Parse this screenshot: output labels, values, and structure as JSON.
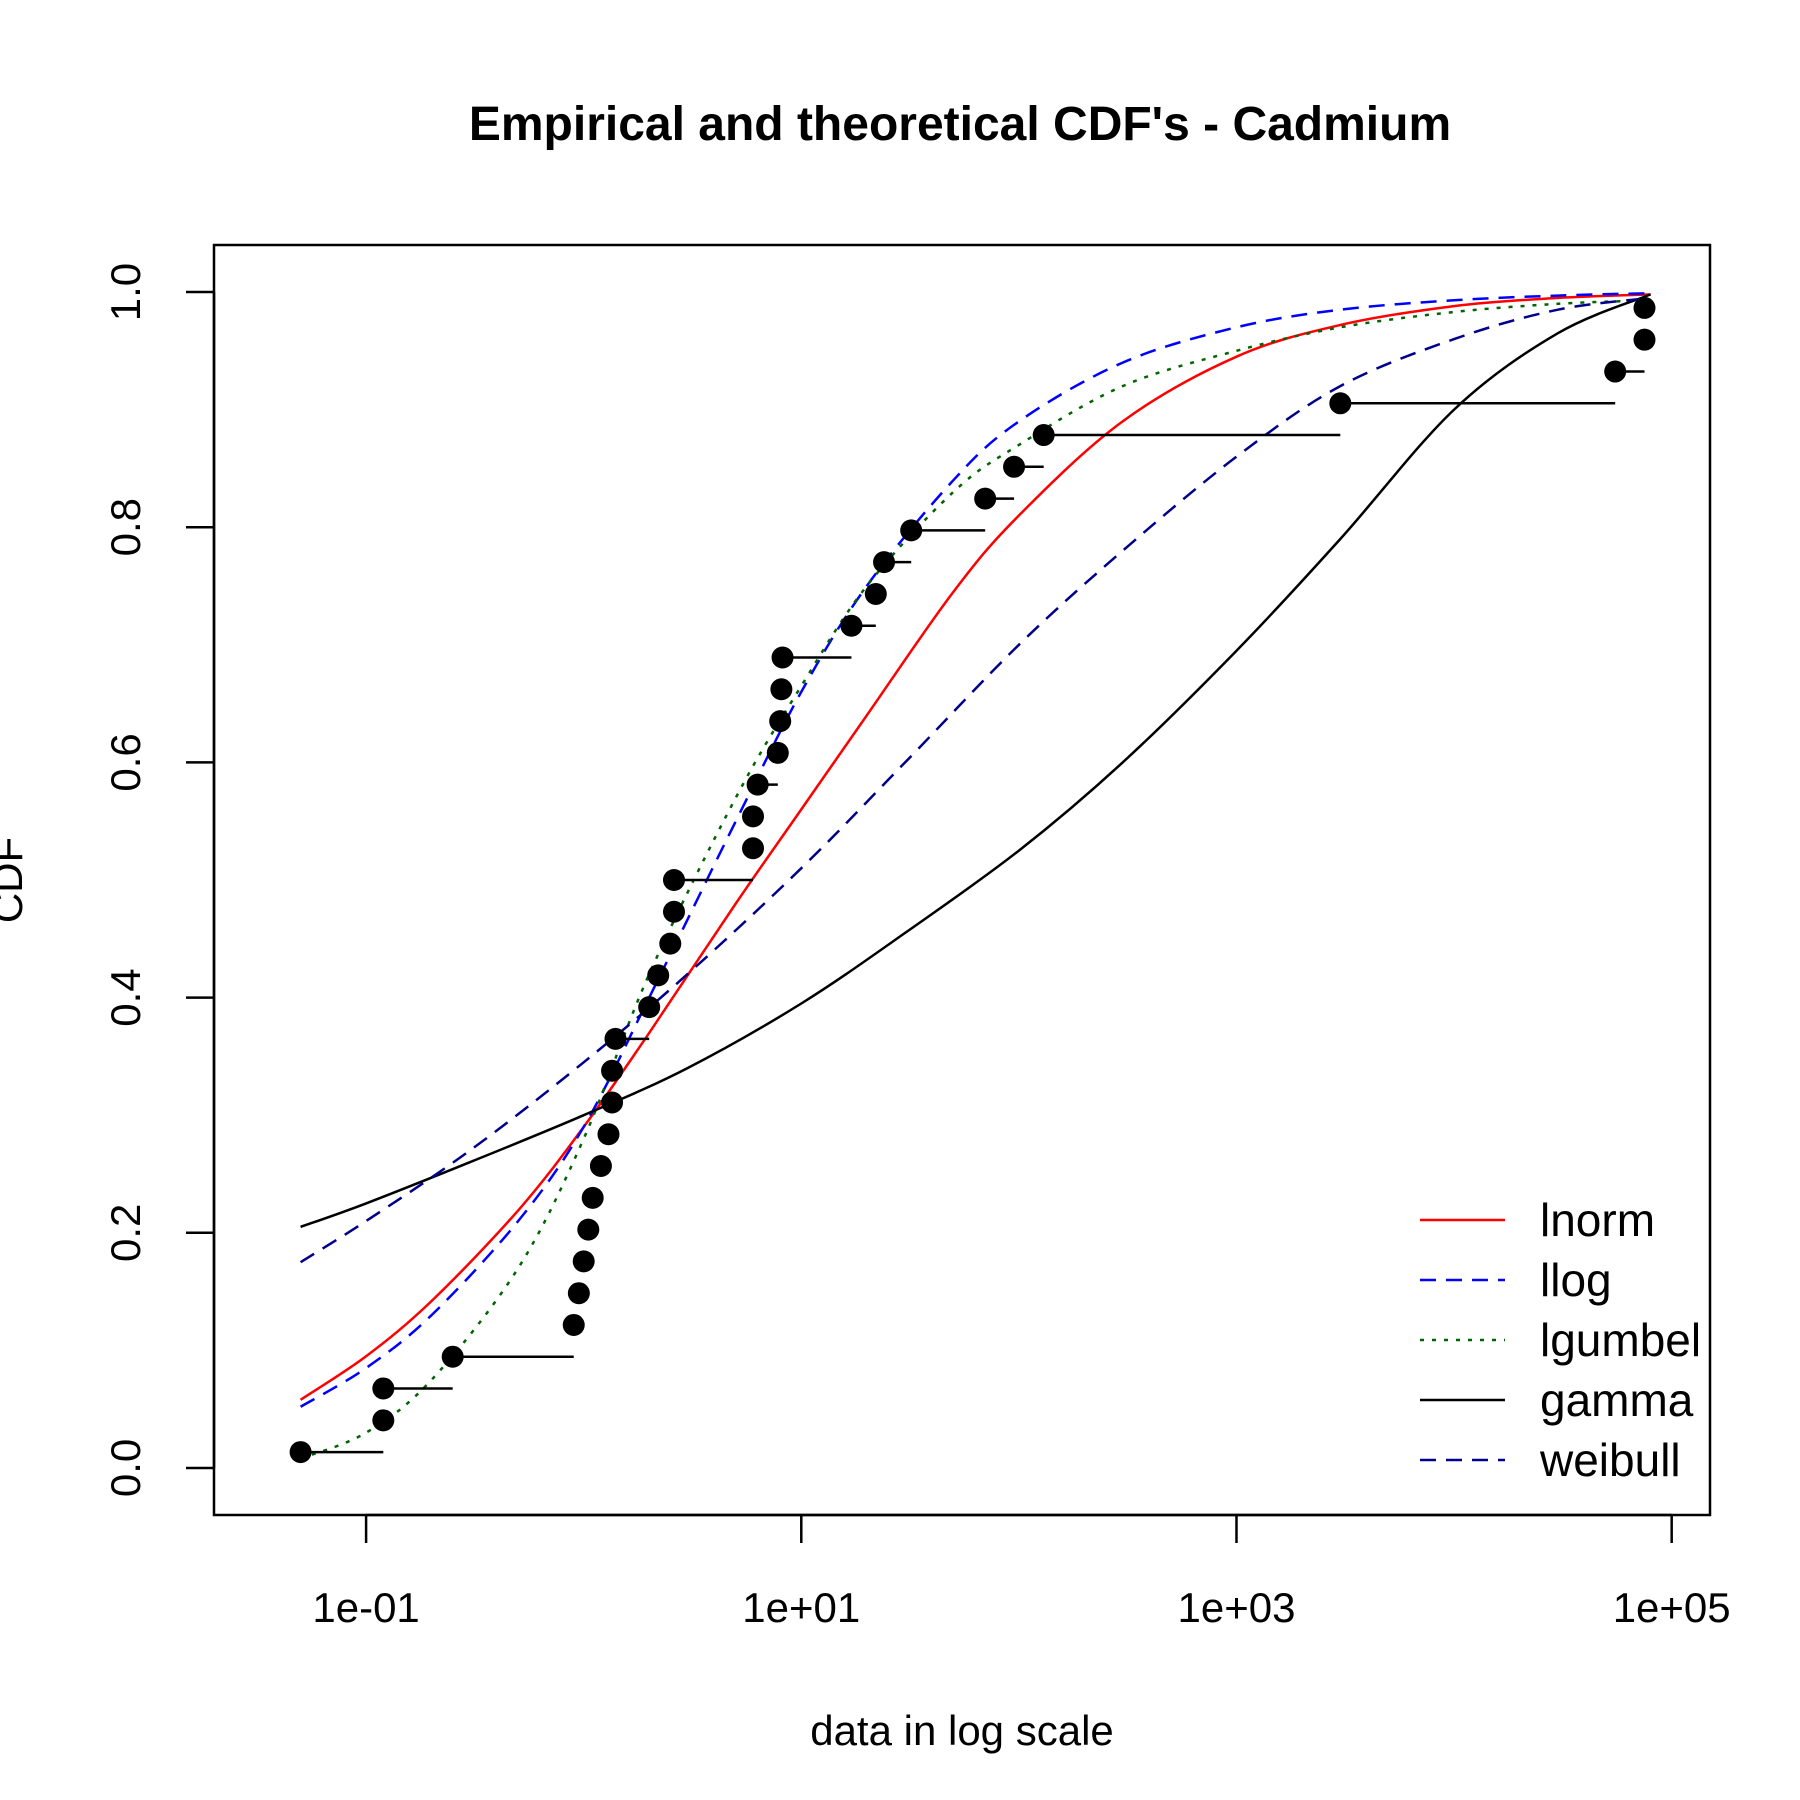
{
  "chart_data": {
    "type": "line",
    "title": "Empirical and theoretical CDF's - Cadmium",
    "xlabel": "data in log scale",
    "ylabel": "CDF",
    "x_scale": "log10",
    "xlim": [
      0.02,
      150000
    ],
    "ylim": [
      -0.04,
      1.04
    ],
    "x_ticks": [
      {
        "value": 0.1,
        "label": "1e-01"
      },
      {
        "value": 10,
        "label": "1e+01"
      },
      {
        "value": 1000,
        "label": "1e+03"
      },
      {
        "value": 100000,
        "label": "1e+05"
      }
    ],
    "y_ticks": [
      {
        "value": 0.0,
        "label": "0.0"
      },
      {
        "value": 0.2,
        "label": "0.2"
      },
      {
        "value": 0.4,
        "label": "0.4"
      },
      {
        "value": 0.6,
        "label": "0.6"
      },
      {
        "value": 0.8,
        "label": "0.8"
      },
      {
        "value": 1.0,
        "label": "1.0"
      }
    ],
    "grid": false,
    "legend_position": "bottom-right",
    "colors": {
      "points": "#000000",
      "lnorm": "#ff0000",
      "llog": "#0000ff",
      "lgumbel": "#006400",
      "gamma": "#000000",
      "weibull": "#00008b"
    },
    "empirical": {
      "x": [
        0.05,
        0.12,
        0.12,
        0.25,
        0.9,
        0.95,
        1.0,
        1.05,
        1.1,
        1.2,
        1.3,
        1.35,
        1.35,
        1.4,
        2.0,
        2.2,
        2.5,
        2.6,
        2.6,
        6.0,
        6.0,
        6.3,
        7.8,
        8.0,
        8.1,
        8.2,
        17,
        22,
        24,
        32,
        70,
        95,
        130,
        3000,
        55000,
        75000
      ],
      "y": [
        0.0135,
        0.0405,
        0.0676,
        0.0946,
        0.1216,
        0.1486,
        0.1757,
        0.2027,
        0.2297,
        0.2568,
        0.2838,
        0.3108,
        0.3378,
        0.3649,
        0.3919,
        0.4189,
        0.4459,
        0.473,
        0.5,
        0.527,
        0.5541,
        0.5811,
        0.6081,
        0.6351,
        0.6622,
        0.6892,
        0.7162,
        0.7432,
        0.7703,
        0.7973,
        0.8243,
        0.8514,
        0.8784,
        0.9054,
        0.9324,
        0.9595
      ],
      "extra_point": {
        "x": 75000,
        "y": 0.9865
      },
      "step_segments": [
        {
          "x0": 0.05,
          "x1": 0.12,
          "y": 0.0135
        },
        {
          "x0": 0.12,
          "x1": 0.25,
          "y": 0.0676
        },
        {
          "x0": 0.25,
          "x1": 0.9,
          "y": 0.0946
        },
        {
          "x0": 1.4,
          "x1": 2.0,
          "y": 0.3649
        },
        {
          "x0": 2.6,
          "x1": 6.0,
          "y": 0.5
        },
        {
          "x0": 6.3,
          "x1": 7.8,
          "y": 0.5811
        },
        {
          "x0": 8.2,
          "x1": 17,
          "y": 0.6892
        },
        {
          "x0": 17,
          "x1": 22,
          "y": 0.7162
        },
        {
          "x0": 24,
          "x1": 32,
          "y": 0.7703
        },
        {
          "x0": 32,
          "x1": 70,
          "y": 0.7973
        },
        {
          "x0": 70,
          "x1": 95,
          "y": 0.8243
        },
        {
          "x0": 95,
          "x1": 130,
          "y": 0.8514
        },
        {
          "x0": 130,
          "x1": 3000,
          "y": 0.8784
        },
        {
          "x0": 3000,
          "x1": 55000,
          "y": 0.9054
        },
        {
          "x0": 55000,
          "x1": 75000,
          "y": 0.9324
        }
      ]
    },
    "series": [
      {
        "name": "lnorm",
        "dash": "solid",
        "x": [
          0.05,
          0.1,
          0.2,
          0.5,
          1.0,
          2.0,
          5.0,
          10,
          20,
          50,
          100,
          300,
          1000,
          3000,
          10000,
          30000,
          80000
        ],
        "y": [
          0.058,
          0.095,
          0.142,
          0.219,
          0.29,
          0.37,
          0.48,
          0.56,
          0.64,
          0.745,
          0.81,
          0.89,
          0.945,
          0.972,
          0.988,
          0.995,
          0.998
        ]
      },
      {
        "name": "llog",
        "dash": "dashed",
        "x": [
          0.05,
          0.1,
          0.2,
          0.5,
          1.0,
          2.0,
          5.0,
          10,
          20,
          50,
          100,
          300,
          1000,
          3000,
          10000,
          30000,
          80000
        ],
        "y": [
          0.052,
          0.085,
          0.13,
          0.21,
          0.29,
          0.4,
          0.55,
          0.66,
          0.75,
          0.84,
          0.89,
          0.94,
          0.97,
          0.985,
          0.993,
          0.997,
          0.999
        ]
      },
      {
        "name": "lgumbel",
        "dash": "dotted",
        "x": [
          0.05,
          0.1,
          0.2,
          0.5,
          1.0,
          2.0,
          5.0,
          10,
          20,
          50,
          100,
          300,
          1000,
          3000,
          10000,
          30000,
          80000
        ],
        "y": [
          0.008,
          0.03,
          0.075,
          0.17,
          0.28,
          0.42,
          0.57,
          0.665,
          0.75,
          0.83,
          0.87,
          0.92,
          0.95,
          0.97,
          0.983,
          0.99,
          0.993
        ]
      },
      {
        "name": "gamma",
        "dash": "solid",
        "x": [
          0.05,
          0.1,
          0.3,
          1.0,
          3.0,
          10,
          30,
          100,
          300,
          1000,
          3000,
          10000,
          30000,
          80000
        ],
        "y": [
          0.205,
          0.225,
          0.26,
          0.3,
          0.34,
          0.395,
          0.455,
          0.525,
          0.6,
          0.695,
          0.79,
          0.9,
          0.965,
          0.998
        ]
      },
      {
        "name": "weibull",
        "dash": "dashed",
        "x": [
          0.05,
          0.1,
          0.3,
          1.0,
          3.0,
          10,
          30,
          100,
          300,
          1000,
          3000,
          10000,
          30000,
          80000
        ],
        "y": [
          0.175,
          0.21,
          0.27,
          0.345,
          0.42,
          0.51,
          0.6,
          0.7,
          0.78,
          0.86,
          0.92,
          0.96,
          0.985,
          0.995
        ]
      }
    ],
    "legend": [
      "lnorm",
      "llog",
      "lgumbel",
      "gamma",
      "weibull"
    ]
  }
}
